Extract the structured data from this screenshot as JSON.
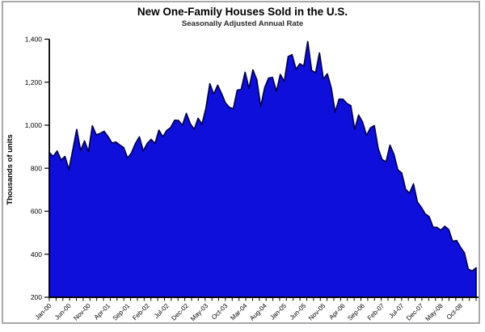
{
  "window": {
    "frame_border_color": "#a8a8a8",
    "background_color": "#ffffff"
  },
  "chart_data": {
    "type": "area",
    "title": "New One-Family Houses Sold in the U.S.",
    "subtitle": "Seasonally Adjusted Annual Rate",
    "ylabel": "Thousands of units",
    "xlabel": "",
    "ylim": [
      200,
      1400
    ],
    "ytick_values": [
      200,
      400,
      600,
      800,
      1000,
      1200,
      1400
    ],
    "ytick_labels": [
      "200",
      "400",
      "600",
      "800",
      "1,000",
      "1,200",
      "1,400"
    ],
    "xtick_labels": [
      "Jan-00",
      "Jun-00",
      "Nov-00",
      "Apr-01",
      "Sep-01",
      "Feb-02",
      "Jul-02",
      "Dec-02",
      "May-03",
      "Oct-03",
      "Mar-04",
      "Aug-04",
      "Jan-05",
      "Jun-05",
      "Nov-05",
      "Apr-06",
      "Sep-06",
      "Feb-07",
      "Jul-07",
      "Dec-07",
      "May-08",
      "Oct-08"
    ],
    "xtick_label_interval_months": 5,
    "x_first_month": "Jan-00",
    "x_last_month": "Feb-09",
    "grid": false,
    "legend": "none",
    "series": [
      {
        "name": "New one-family houses sold (SAAR, thousands)",
        "values": [
          873,
          855,
          880,
          838,
          855,
          793,
          885,
          980,
          882,
          927,
          877,
          997,
          955,
          962,
          972,
          947,
          917,
          922,
          908,
          896,
          847,
          872,
          915,
          946,
          880,
          915,
          934,
          915,
          977,
          946,
          976,
          989,
          1023,
          1022,
          1000,
          1055,
          1007,
          981,
          1032,
          1005,
          1079,
          1193,
          1144,
          1186,
          1147,
          1103,
          1083,
          1077,
          1163,
          1166,
          1246,
          1171,
          1257,
          1211,
          1086,
          1175,
          1219,
          1222,
          1157,
          1236,
          1203,
          1319,
          1328,
          1260,
          1286,
          1274,
          1389,
          1255,
          1244,
          1336,
          1214,
          1239,
          1174,
          1061,
          1121,
          1121,
          1101,
          1091,
          980,
          1047,
          1015,
          952,
          987,
          998,
          891,
          840,
          830,
          907,
          865,
          793,
          778,
          702,
          684,
          727,
          643,
          618,
          588,
          575,
          526,
          525,
          512,
          530,
          515,
          460,
          464,
          433,
          407,
          331,
          322,
          337
        ]
      }
    ],
    "colors": {
      "area_fill": "#0f0fdc",
      "area_stroke": "#000050",
      "axis": "#000000",
      "text": "#000000"
    }
  }
}
